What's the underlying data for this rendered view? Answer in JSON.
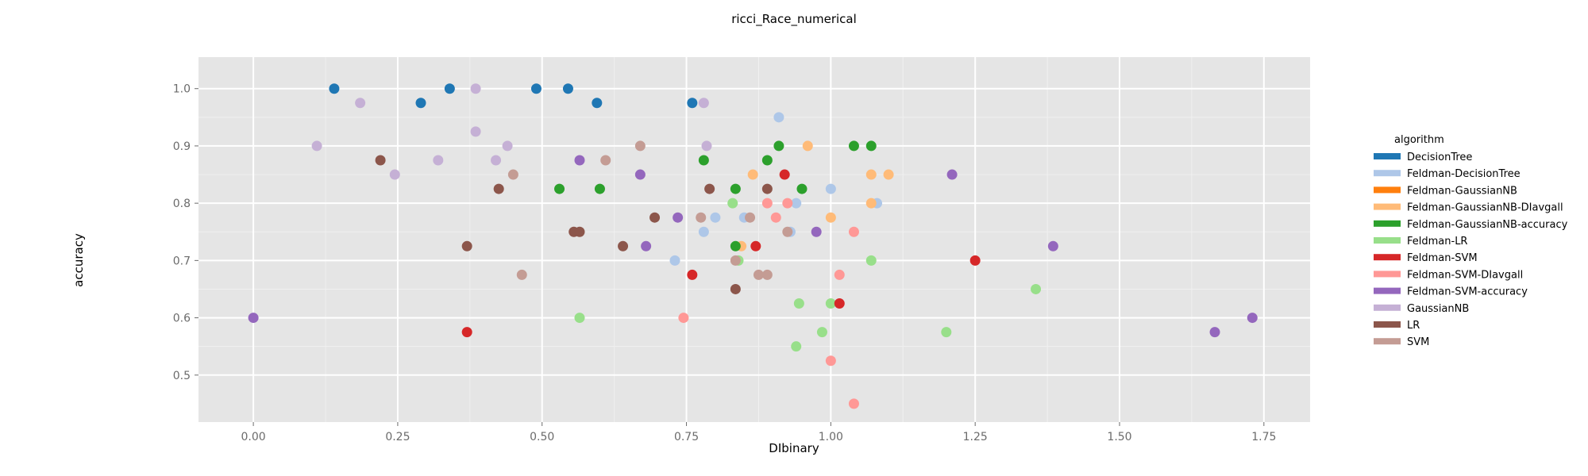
{
  "chart_data": {
    "type": "scatter",
    "title": "ricci_Race_numerical",
    "xlabel": "DIbinary",
    "ylabel": "accuracy",
    "xlim": [
      -0.095,
      1.83
    ],
    "ylim": [
      0.418,
      1.055
    ],
    "xticks": [
      "0.00",
      "0.25",
      "0.50",
      "0.75",
      "1.00",
      "1.25",
      "1.50",
      "1.75"
    ],
    "yticks": [
      "0.5",
      "0.6",
      "0.7",
      "0.8",
      "0.9",
      "1.0"
    ],
    "grid": true,
    "legend_title": "algorithm",
    "legend_position": "right",
    "series": [
      {
        "name": "DecisionTree",
        "color": "#1f77b4",
        "points": [
          [
            0.14,
            1.0
          ],
          [
            0.34,
            1.0
          ],
          [
            0.49,
            1.0
          ],
          [
            0.545,
            1.0
          ],
          [
            0.29,
            0.975
          ],
          [
            0.595,
            0.975
          ],
          [
            0.76,
            0.975
          ]
        ]
      },
      {
        "name": "Feldman-DecisionTree",
        "color": "#aec7e8",
        "points": [
          [
            0.91,
            0.95
          ],
          [
            1.0,
            0.825
          ],
          [
            0.94,
            0.8
          ],
          [
            1.08,
            0.8
          ],
          [
            0.8,
            0.775
          ],
          [
            0.85,
            0.775
          ],
          [
            0.78,
            0.75
          ],
          [
            0.93,
            0.75
          ],
          [
            0.73,
            0.7
          ]
        ]
      },
      {
        "name": "Feldman-GaussianNB",
        "color": "#ff7f0e",
        "points": []
      },
      {
        "name": "Feldman-GaussianNB-DIavgall",
        "color": "#ffbb78",
        "points": [
          [
            0.96,
            0.9
          ],
          [
            0.865,
            0.85
          ],
          [
            1.07,
            0.85
          ],
          [
            1.1,
            0.85
          ],
          [
            1.07,
            0.8
          ],
          [
            1.0,
            0.775
          ],
          [
            0.845,
            0.725
          ]
        ]
      },
      {
        "name": "Feldman-GaussianNB-accuracy",
        "color": "#2ca02c",
        "points": [
          [
            0.91,
            0.9
          ],
          [
            1.04,
            0.9
          ],
          [
            1.07,
            0.9
          ],
          [
            0.78,
            0.875
          ],
          [
            0.89,
            0.875
          ],
          [
            0.53,
            0.825
          ],
          [
            0.6,
            0.825
          ],
          [
            0.835,
            0.825
          ],
          [
            0.95,
            0.825
          ],
          [
            0.835,
            0.725
          ]
        ]
      },
      {
        "name": "Feldman-LR",
        "color": "#98df8a",
        "points": [
          [
            0.83,
            0.8
          ],
          [
            0.84,
            0.7
          ],
          [
            1.07,
            0.7
          ],
          [
            1.355,
            0.65
          ],
          [
            0.565,
            0.6
          ],
          [
            0.945,
            0.625
          ],
          [
            1.0,
            0.625
          ],
          [
            0.985,
            0.575
          ],
          [
            1.2,
            0.575
          ],
          [
            0.94,
            0.55
          ]
        ]
      },
      {
        "name": "Feldman-SVM",
        "color": "#d62728",
        "points": [
          [
            0.92,
            0.85
          ],
          [
            0.87,
            0.725
          ],
          [
            0.76,
            0.675
          ],
          [
            1.25,
            0.7
          ],
          [
            1.015,
            0.625
          ],
          [
            0.37,
            0.575
          ]
        ]
      },
      {
        "name": "Feldman-SVM-DIavgall",
        "color": "#ff9896",
        "points": [
          [
            0.89,
            0.8
          ],
          [
            0.925,
            0.8
          ],
          [
            0.905,
            0.775
          ],
          [
            1.04,
            0.75
          ],
          [
            1.015,
            0.675
          ],
          [
            0.745,
            0.6
          ],
          [
            1.0,
            0.525
          ],
          [
            1.04,
            0.45
          ]
        ]
      },
      {
        "name": "Feldman-SVM-accuracy",
        "color": "#9467bd",
        "points": [
          [
            0.565,
            0.875
          ],
          [
            0.67,
            0.85
          ],
          [
            1.21,
            0.85
          ],
          [
            0.735,
            0.775
          ],
          [
            0.975,
            0.75
          ],
          [
            0.68,
            0.725
          ],
          [
            1.385,
            0.725
          ],
          [
            0.0,
            0.6
          ],
          [
            1.665,
            0.575
          ],
          [
            1.73,
            0.6
          ]
        ]
      },
      {
        "name": "GaussianNB",
        "color": "#c5b0d5",
        "points": [
          [
            0.385,
            1.0
          ],
          [
            0.185,
            0.975
          ],
          [
            0.78,
            0.975
          ],
          [
            0.385,
            0.925
          ],
          [
            0.11,
            0.9
          ],
          [
            0.44,
            0.9
          ],
          [
            0.785,
            0.9
          ],
          [
            0.245,
            0.85
          ],
          [
            0.32,
            0.875
          ],
          [
            0.42,
            0.875
          ]
        ]
      },
      {
        "name": "LR",
        "color": "#8c564b",
        "points": [
          [
            0.22,
            0.875
          ],
          [
            0.425,
            0.825
          ],
          [
            0.79,
            0.825
          ],
          [
            0.89,
            0.825
          ],
          [
            0.695,
            0.775
          ],
          [
            0.555,
            0.75
          ],
          [
            0.565,
            0.75
          ],
          [
            0.37,
            0.725
          ],
          [
            0.64,
            0.725
          ],
          [
            0.835,
            0.65
          ]
        ]
      },
      {
        "name": "SVM",
        "color": "#c49c94",
        "points": [
          [
            0.67,
            0.9
          ],
          [
            0.61,
            0.875
          ],
          [
            0.45,
            0.85
          ],
          [
            0.775,
            0.775
          ],
          [
            0.86,
            0.775
          ],
          [
            0.925,
            0.75
          ],
          [
            0.835,
            0.7
          ],
          [
            0.465,
            0.675
          ],
          [
            0.875,
            0.675
          ],
          [
            0.89,
            0.675
          ]
        ]
      }
    ]
  }
}
